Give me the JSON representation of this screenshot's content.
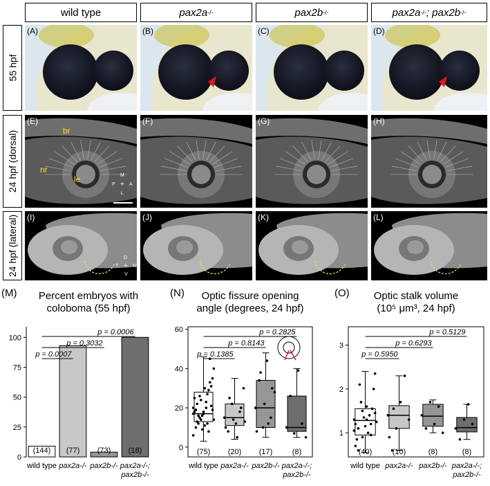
{
  "headers": {
    "col1": "wild type",
    "col2": "pax2a",
    "col2_sup": "-/-",
    "col3": "pax2b",
    "col3_sup": "-/-",
    "col4a": "pax2a",
    "col4a_sup": "-/-",
    "col4b": "; pax2b",
    "col4b_sup": "-/-",
    "row1": "55 hpf",
    "row2": "24 hpf (dorsal)",
    "row3": "24 hpf (lateral)"
  },
  "panels": {
    "row1": [
      "(A)",
      "(B)",
      "(C)",
      "(D)"
    ],
    "row2": [
      "(E)",
      "(F)",
      "(G)",
      "(H)"
    ],
    "row3": [
      "(I)",
      "(J)",
      "(K)",
      "(L)"
    ]
  },
  "annotations": {
    "br": "br",
    "nr": "nr",
    "le": "le",
    "axis_m": "M",
    "axis_p": "P",
    "axis_a": "A",
    "axis_l": "L",
    "axis_d": "D",
    "axis_t": "T",
    "axis_n": "N",
    "axis_v": "V"
  },
  "colors": {
    "arrow": "#e0161b",
    "yellow_label": "#f5e11a",
    "bar_wt": "#ffffff",
    "bar_pax2a": "#c8c8c8",
    "bar_pax2b": "#969696",
    "bar_double": "#6e6e6e"
  },
  "chart_data": [
    {
      "type": "bar",
      "panel_label": "(M)",
      "title": "Percent embryos with coloboma (55 hpf)",
      "categories": [
        "wild type",
        "pax2a-/-",
        "pax2b-/-",
        "pax2a-/-; pax2b-/-"
      ],
      "values": [
        9,
        93,
        4,
        100
      ],
      "n": [
        "(144)",
        "(77)",
        "(73)",
        "(18)"
      ],
      "ylim": [
        0,
        110
      ],
      "yticks": [
        0,
        25,
        50,
        75,
        100
      ],
      "pvalues": [
        {
          "text": "p = 0.0007",
          "from": 0,
          "to": 1
        },
        {
          "text": "p = 0.3032",
          "from": 0,
          "to": 2
        },
        {
          "text": "p = 0.0006",
          "from": 0,
          "to": 3
        }
      ]
    },
    {
      "type": "boxplot",
      "panel_label": "(N)",
      "title": "Optic fissure opening angle (degrees, 24 hpf)",
      "categories": [
        "wild type",
        "pax2a-/-",
        "pax2b-/-",
        "pax2a-/-; pax2b-/-"
      ],
      "boxes": [
        {
          "min": 3,
          "q1": 13,
          "median": 17,
          "q3": 28,
          "max": 46
        },
        {
          "min": 4,
          "q1": 11,
          "median": 15,
          "q3": 22,
          "max": 35
        },
        {
          "min": 5,
          "q1": 10,
          "median": 20,
          "q3": 34,
          "max": 48
        },
        {
          "min": 5,
          "q1": 8,
          "median": 10,
          "q3": 26,
          "max": 40
        }
      ],
      "points": [
        [
          17,
          22,
          14,
          30,
          8,
          19,
          25,
          12,
          16,
          20,
          33,
          40,
          10,
          15,
          18,
          27,
          21,
          6,
          13,
          24,
          11,
          29,
          35,
          18,
          16,
          9,
          23,
          45,
          14,
          19,
          26,
          17,
          12,
          31,
          20
        ],
        [
          15,
          8,
          22,
          12,
          18,
          30,
          10,
          25,
          14,
          5,
          20,
          13
        ],
        [
          20,
          34,
          10,
          44,
          15,
          28,
          8,
          38,
          22,
          12,
          30
        ],
        [
          10,
          26,
          7,
          39,
          12,
          5
        ]
      ],
      "n": [
        "(75)",
        "(20)",
        "(17)",
        "(8)"
      ],
      "ylim": [
        -5,
        62
      ],
      "yticks": [
        0,
        20,
        40,
        60
      ],
      "pvalues": [
        {
          "text": "p = 0.1385",
          "from": 0,
          "to": 1
        },
        {
          "text": "p = 0.8143",
          "from": 0,
          "to": 2
        },
        {
          "text": "p = 0.2825",
          "from": 0,
          "to": 3
        }
      ]
    },
    {
      "type": "boxplot",
      "panel_label": "(O)",
      "title": "Optic stalk volume",
      "title2": "(10⁵ μm³, 24 hpf)",
      "categories": [
        "wild type",
        "pax2a-/-",
        "pax2b-/-",
        "pax2a-/-; pax2b-/-"
      ],
      "boxes": [
        {
          "min": 0.55,
          "q1": 0.95,
          "median": 1.28,
          "q3": 1.55,
          "max": 2.4
        },
        {
          "min": 0.6,
          "q1": 1.1,
          "median": 1.4,
          "q3": 1.62,
          "max": 2.3
        },
        {
          "min": 1.0,
          "q1": 1.15,
          "median": 1.38,
          "q3": 1.65,
          "max": 1.75
        },
        {
          "min": 0.85,
          "q1": 1.02,
          "median": 1.12,
          "q3": 1.35,
          "max": 1.65
        }
      ],
      "points": [
        [
          1.3,
          1.1,
          0.9,
          1.6,
          1.2,
          1.45,
          0.7,
          2.1,
          1.35,
          1.0,
          1.55,
          1.25,
          0.85,
          1.7,
          1.15,
          1.4,
          2.0,
          1.05,
          0.6,
          1.5,
          1.3,
          0.95,
          2.35,
          1.2
        ],
        [
          1.4,
          0.6,
          1.1,
          1.7,
          2.3,
          1.3,
          0.9,
          1.55
        ],
        [
          1.4,
          1.1,
          1.7,
          1.2,
          1.6,
          1.0
        ],
        [
          1.1,
          0.85,
          1.3,
          1.65,
          1.2
        ]
      ],
      "n": [
        "(40)",
        "(10)",
        "(8)",
        "(8)"
      ],
      "ylim": [
        0.45,
        3.45
      ],
      "yticks": [
        1,
        2,
        3
      ],
      "pvalues": [
        {
          "text": "p = 0.5950",
          "from": 0,
          "to": 1
        },
        {
          "text": "p = 0.6293",
          "from": 0,
          "to": 2
        },
        {
          "text": "p = 0.5129",
          "from": 0,
          "to": 3
        }
      ]
    }
  ]
}
